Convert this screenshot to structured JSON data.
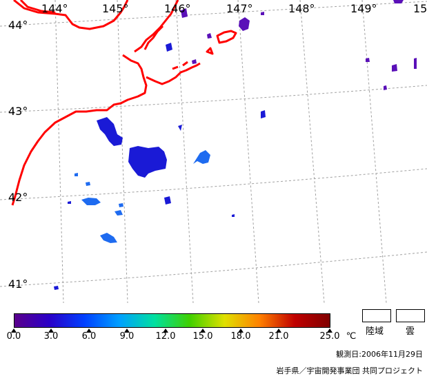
{
  "map": {
    "longitude_labels": [
      "144°",
      "145°",
      "146°",
      "147°",
      "148°",
      "149°",
      "15"
    ],
    "latitude_labels": [
      "44°",
      "43°",
      "42°",
      "41°"
    ],
    "colors": {
      "coastline": "#ff0000",
      "grid": "#a0a0a0",
      "sst_cold": "#1a1ad6",
      "sst_mid": "#1e6bf0",
      "sst_purple": "#5a10b8"
    }
  },
  "colorbar": {
    "ticks": [
      "0.0",
      "3.0",
      "6.0",
      "9.0",
      "12.0",
      "15.0",
      "18.0",
      "21.0",
      "25.0"
    ],
    "unit": "℃",
    "gradient_colors": [
      "#5a008c",
      "#2a00c8",
      "#0040ff",
      "#00a0ff",
      "#00e0a0",
      "#40d000",
      "#e0e000",
      "#ff8000",
      "#c00000",
      "#800000"
    ]
  },
  "legend": {
    "land_label": "陸域",
    "cloud_label": "雲"
  },
  "footer": {
    "date_text": "観測日:2006年11月29日",
    "credit_text": "岩手県／宇宙開発事業団 共同プロジェクト"
  }
}
